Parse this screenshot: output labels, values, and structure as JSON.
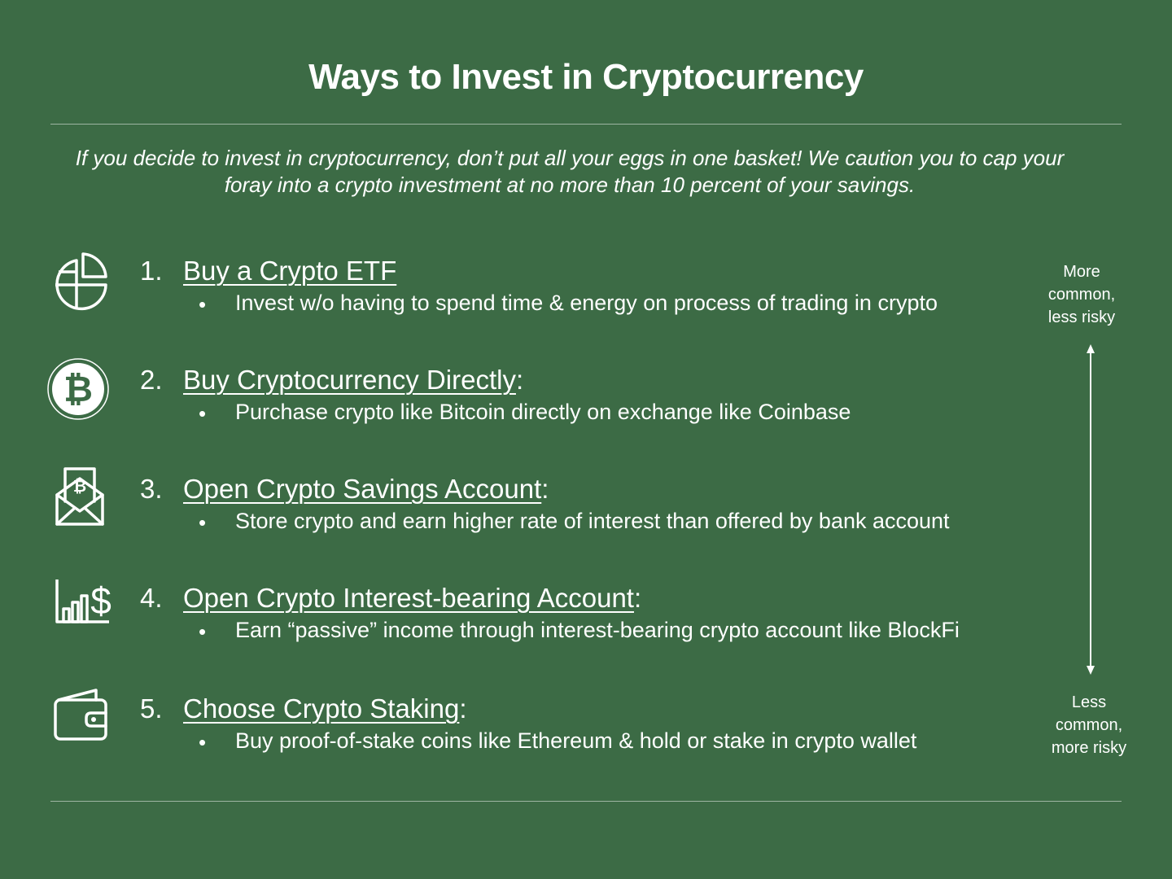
{
  "title": "Ways to Invest in Cryptocurrency",
  "subtitle": "If you decide to invest in cryptocurrency, don’t put all your eggs in one basket! We caution you to cap your foray into a crypto investment at no more than 10 percent of your savings.",
  "items": [
    {
      "number": "1.",
      "heading": "Buy a Crypto ETF",
      "suffix": "",
      "bullet": "•",
      "description": "Invest w/o having to spend time & energy on process of trading in crypto",
      "icon": "pie-chart-icon"
    },
    {
      "number": "2.",
      "heading": "Buy Cryptocurrency Directly",
      "suffix": ":",
      "bullet": "•",
      "description": "Purchase crypto like Bitcoin directly on exchange like Coinbase",
      "icon": "bitcoin-icon"
    },
    {
      "number": "3.",
      "heading": "Open Crypto Savings Account",
      "suffix": ":",
      "bullet": "•",
      "description": "Store crypto and earn higher rate of interest than offered by bank account",
      "icon": "envelope-bitcoin-icon"
    },
    {
      "number": "4.",
      "heading": "Open Crypto Interest-bearing Account",
      "suffix": ":",
      "bullet": "•",
      "description": "Earn “passive” income through interest-bearing crypto account like BlockFi",
      "icon": "bar-chart-dollar-icon"
    },
    {
      "number": "5.",
      "heading": "Choose Crypto Staking",
      "suffix": ":",
      "bullet": "•",
      "description": "Buy proof-of-stake coins like Ethereum & hold or stake in crypto wallet",
      "icon": "wallet-icon"
    }
  ],
  "scale": {
    "top_label": "More common, less risky",
    "top_lines": [
      "More",
      "common,",
      "less risky"
    ],
    "bottom_label": "Less common, more risky",
    "bottom_lines": [
      "Less",
      "common,",
      "more risky"
    ]
  },
  "colors": {
    "background": "#3c6b45",
    "text": "#ffffff",
    "rule": "#9db5a2"
  }
}
